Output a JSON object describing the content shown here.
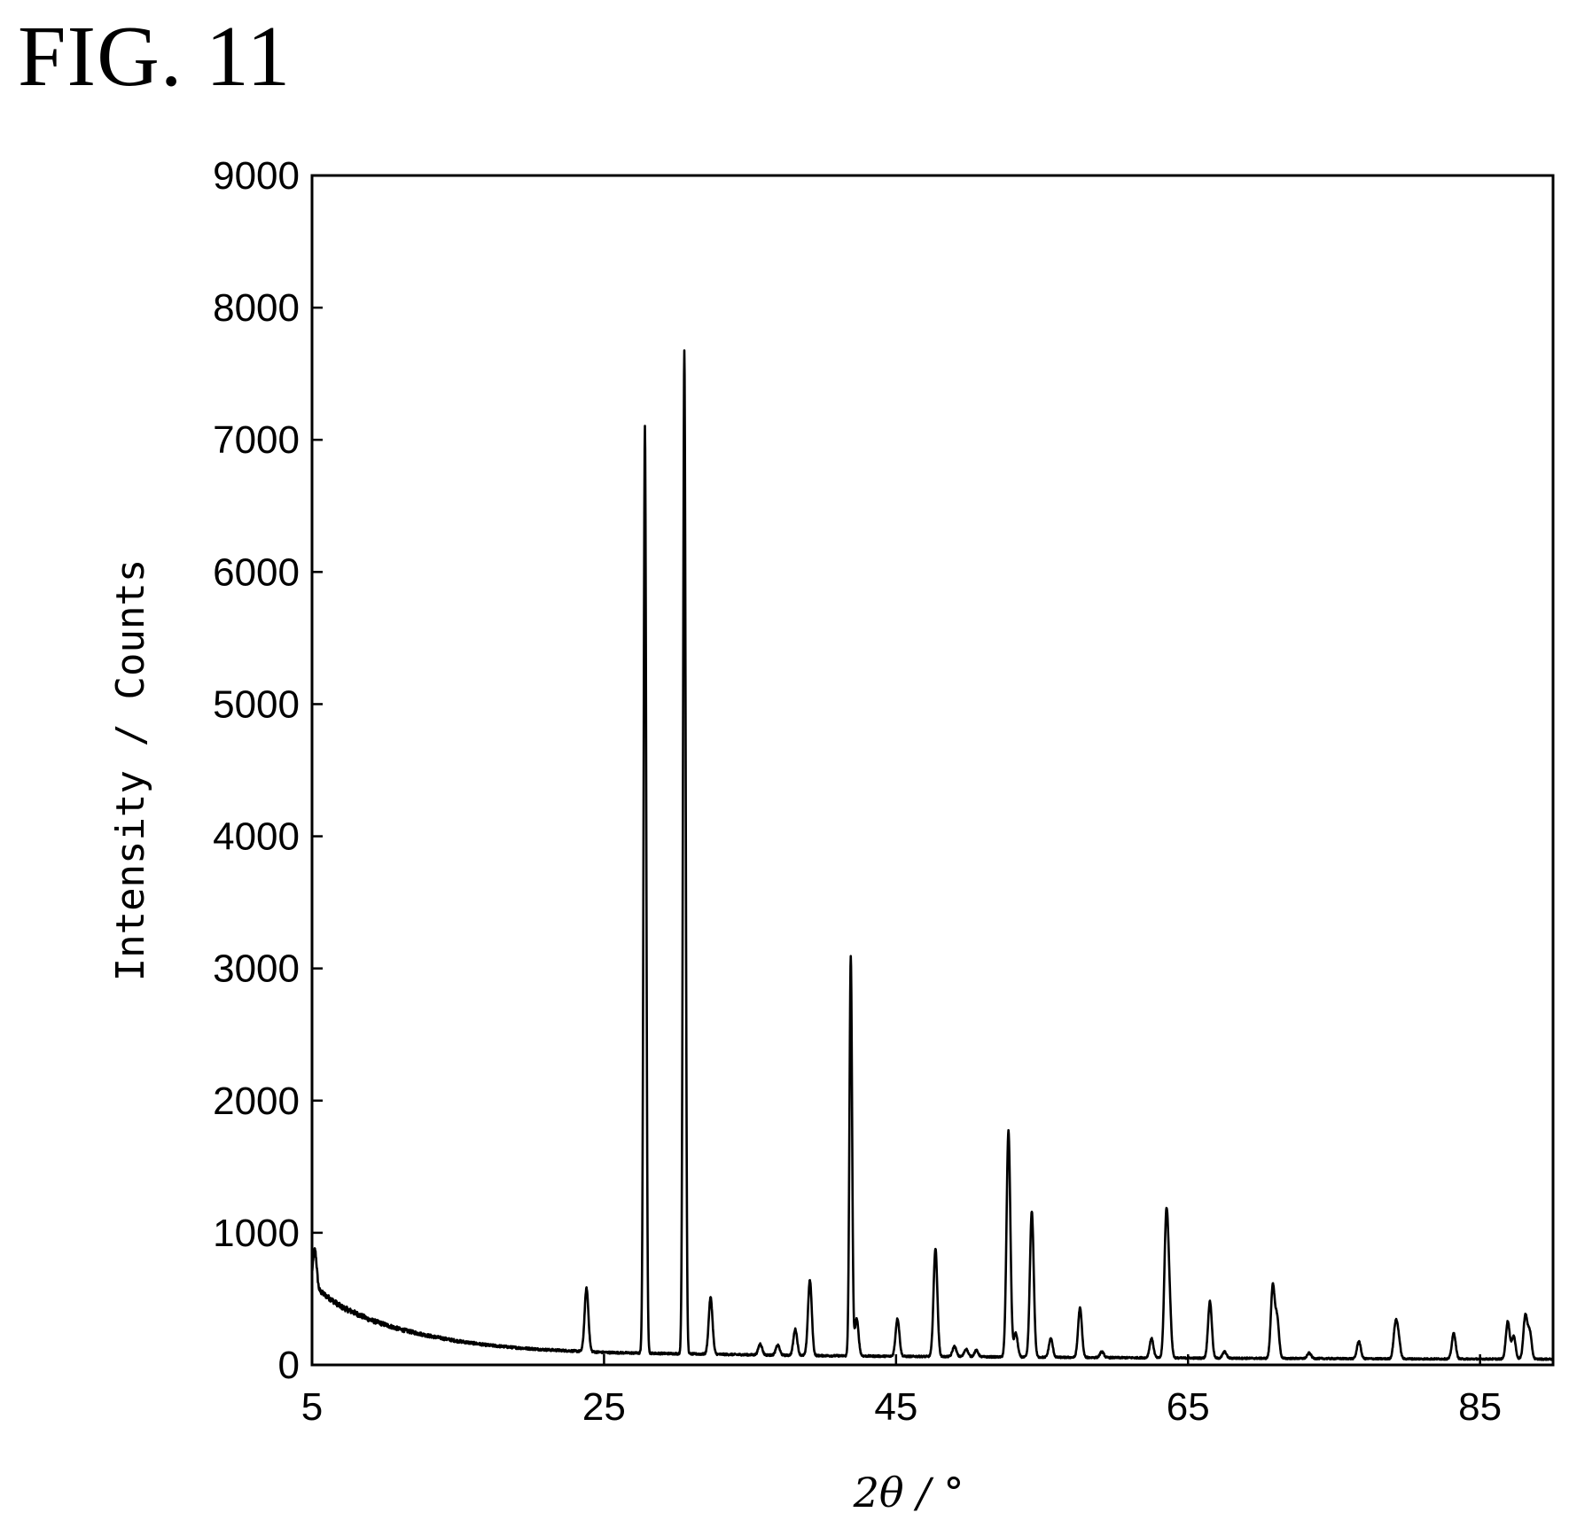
{
  "figure_label": "FIG. 11",
  "chart_data": {
    "type": "line",
    "title": "",
    "xlabel": "2θ / °",
    "ylabel": "Intensity / Counts",
    "xlim": [
      5,
      90
    ],
    "ylim": [
      0,
      9000
    ],
    "xticks": [
      5,
      25,
      45,
      65,
      85
    ],
    "yticks": [
      0,
      1000,
      2000,
      3000,
      4000,
      5000,
      6000,
      7000,
      8000,
      9000
    ],
    "grid": false,
    "legend": "none",
    "line_color": "#000000",
    "series": [
      {
        "baseline": [
          [
            5.0,
            640
          ],
          [
            5.5,
            560
          ],
          [
            7,
            440
          ],
          [
            9,
            340
          ],
          [
            11,
            270
          ],
          [
            13,
            220
          ],
          [
            15,
            180
          ],
          [
            17,
            150
          ],
          [
            19,
            130
          ],
          [
            21,
            115
          ],
          [
            23,
            105
          ],
          [
            25,
            95
          ],
          [
            27,
            90
          ],
          [
            30,
            85
          ],
          [
            33,
            80
          ],
          [
            36,
            75
          ],
          [
            40,
            70
          ],
          [
            45,
            65
          ],
          [
            50,
            62
          ],
          [
            55,
            58
          ],
          [
            60,
            55
          ],
          [
            65,
            52
          ],
          [
            70,
            50
          ],
          [
            75,
            48
          ],
          [
            80,
            46
          ],
          [
            85,
            45
          ],
          [
            90,
            44
          ]
        ],
        "peaks": [
          [
            5.2,
            870
          ],
          [
            23.8,
            580
          ],
          [
            27.8,
            7100
          ],
          [
            30.5,
            7680
          ],
          [
            32.3,
            510
          ],
          [
            35.7,
            160
          ],
          [
            36.9,
            150
          ],
          [
            38.1,
            270
          ],
          [
            39.1,
            640
          ],
          [
            41.9,
            3090
          ],
          [
            42.3,
            350
          ],
          [
            45.1,
            350
          ],
          [
            47.7,
            880
          ],
          [
            49.0,
            140
          ],
          [
            49.8,
            120
          ],
          [
            50.5,
            110
          ],
          [
            52.7,
            1770
          ],
          [
            53.2,
            240
          ],
          [
            54.3,
            1160
          ],
          [
            55.6,
            200
          ],
          [
            57.6,
            430
          ],
          [
            59.1,
            100
          ],
          [
            62.5,
            200
          ],
          [
            63.5,
            1030
          ],
          [
            63.7,
            490
          ],
          [
            66.5,
            480
          ],
          [
            67.5,
            100
          ],
          [
            70.8,
            590
          ],
          [
            71.1,
            350
          ],
          [
            73.3,
            90
          ],
          [
            76.7,
            180
          ],
          [
            79.2,
            280
          ],
          [
            79.4,
            200
          ],
          [
            83.2,
            240
          ],
          [
            86.9,
            330
          ],
          [
            87.3,
            220
          ],
          [
            88.1,
            370
          ],
          [
            88.4,
            250
          ]
        ]
      }
    ]
  }
}
